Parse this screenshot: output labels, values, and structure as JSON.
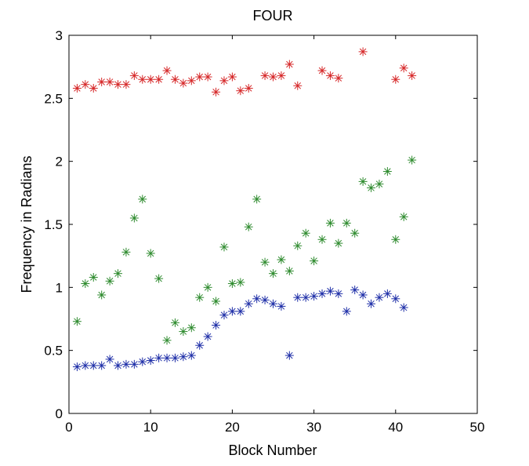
{
  "chart_data": {
    "type": "scatter",
    "title": "FOUR",
    "xlabel": "Block Number",
    "ylabel": "Frequency in Radians",
    "xlim": [
      0,
      50
    ],
    "ylim": [
      0,
      3
    ],
    "xticks": [
      0,
      10,
      20,
      30,
      40,
      50
    ],
    "yticks": [
      0,
      0.5,
      1,
      1.5,
      2,
      2.5,
      3
    ],
    "xtick_labels": [
      "0",
      "10",
      "20",
      "30",
      "40",
      "50"
    ],
    "ytick_labels": [
      "0",
      "0.5",
      "1",
      "1.5",
      "2",
      "2.5",
      "3"
    ],
    "grid": false,
    "legend": "none",
    "marker": "asterisk",
    "series": [
      {
        "color": "#d62728",
        "points": [
          [
            1,
            2.58
          ],
          [
            2,
            2.61
          ],
          [
            3,
            2.58
          ],
          [
            4,
            2.63
          ],
          [
            5,
            2.63
          ],
          [
            6,
            2.61
          ],
          [
            7,
            2.61
          ],
          [
            8,
            2.68
          ],
          [
            9,
            2.65
          ],
          [
            10,
            2.65
          ],
          [
            11,
            2.65
          ],
          [
            12,
            2.72
          ],
          [
            13,
            2.65
          ],
          [
            14,
            2.62
          ],
          [
            15,
            2.64
          ],
          [
            16,
            2.67
          ],
          [
            17,
            2.67
          ],
          [
            18,
            2.55
          ],
          [
            19,
            2.64
          ],
          [
            20,
            2.67
          ],
          [
            21,
            2.56
          ],
          [
            22,
            2.58
          ],
          [
            24,
            2.68
          ],
          [
            25,
            2.67
          ],
          [
            26,
            2.68
          ],
          [
            27,
            2.77
          ],
          [
            28,
            2.6
          ],
          [
            31,
            2.72
          ],
          [
            32,
            2.68
          ],
          [
            33,
            2.66
          ],
          [
            36,
            2.87
          ],
          [
            40,
            2.65
          ],
          [
            41,
            2.74
          ],
          [
            42,
            2.68
          ]
        ]
      },
      {
        "color": "#2e8b2e",
        "points": [
          [
            1,
            0.73
          ],
          [
            2,
            1.03
          ],
          [
            3,
            1.08
          ],
          [
            4,
            0.94
          ],
          [
            5,
            1.05
          ],
          [
            6,
            1.11
          ],
          [
            7,
            1.28
          ],
          [
            8,
            1.55
          ],
          [
            9,
            1.7
          ],
          [
            10,
            1.27
          ],
          [
            11,
            1.07
          ],
          [
            12,
            0.58
          ],
          [
            13,
            0.72
          ],
          [
            14,
            0.65
          ],
          [
            15,
            0.68
          ],
          [
            16,
            0.92
          ],
          [
            17,
            1.0
          ],
          [
            18,
            0.89
          ],
          [
            19,
            1.32
          ],
          [
            20,
            1.03
          ],
          [
            21,
            1.04
          ],
          [
            22,
            1.48
          ],
          [
            23,
            1.7
          ],
          [
            24,
            1.2
          ],
          [
            25,
            1.11
          ],
          [
            26,
            1.22
          ],
          [
            27,
            1.13
          ],
          [
            28,
            1.33
          ],
          [
            29,
            1.43
          ],
          [
            30,
            1.21
          ],
          [
            31,
            1.38
          ],
          [
            32,
            1.51
          ],
          [
            33,
            1.35
          ],
          [
            34,
            1.51
          ],
          [
            35,
            1.43
          ],
          [
            36,
            1.84
          ],
          [
            37,
            1.79
          ],
          [
            38,
            1.82
          ],
          [
            39,
            1.92
          ],
          [
            40,
            1.38
          ],
          [
            41,
            1.56
          ],
          [
            42,
            2.01
          ]
        ]
      },
      {
        "color": "#1f2fa8",
        "points": [
          [
            1,
            0.37
          ],
          [
            2,
            0.38
          ],
          [
            3,
            0.38
          ],
          [
            4,
            0.38
          ],
          [
            5,
            0.43
          ],
          [
            6,
            0.38
          ],
          [
            7,
            0.39
          ],
          [
            8,
            0.39
          ],
          [
            9,
            0.41
          ],
          [
            10,
            0.42
          ],
          [
            11,
            0.44
          ],
          [
            12,
            0.44
          ],
          [
            13,
            0.44
          ],
          [
            14,
            0.45
          ],
          [
            15,
            0.46
          ],
          [
            16,
            0.54
          ],
          [
            17,
            0.61
          ],
          [
            18,
            0.7
          ],
          [
            19,
            0.78
          ],
          [
            20,
            0.81
          ],
          [
            21,
            0.81
          ],
          [
            22,
            0.87
          ],
          [
            23,
            0.91
          ],
          [
            24,
            0.9
          ],
          [
            25,
            0.87
          ],
          [
            26,
            0.85
          ],
          [
            27,
            0.46
          ],
          [
            28,
            0.92
          ],
          [
            29,
            0.92
          ],
          [
            30,
            0.93
          ],
          [
            31,
            0.95
          ],
          [
            32,
            0.97
          ],
          [
            33,
            0.95
          ],
          [
            34,
            0.81
          ],
          [
            35,
            0.98
          ],
          [
            36,
            0.94
          ],
          [
            37,
            0.87
          ],
          [
            38,
            0.92
          ],
          [
            39,
            0.95
          ],
          [
            40,
            0.91
          ],
          [
            41,
            0.84
          ]
        ]
      }
    ]
  }
}
